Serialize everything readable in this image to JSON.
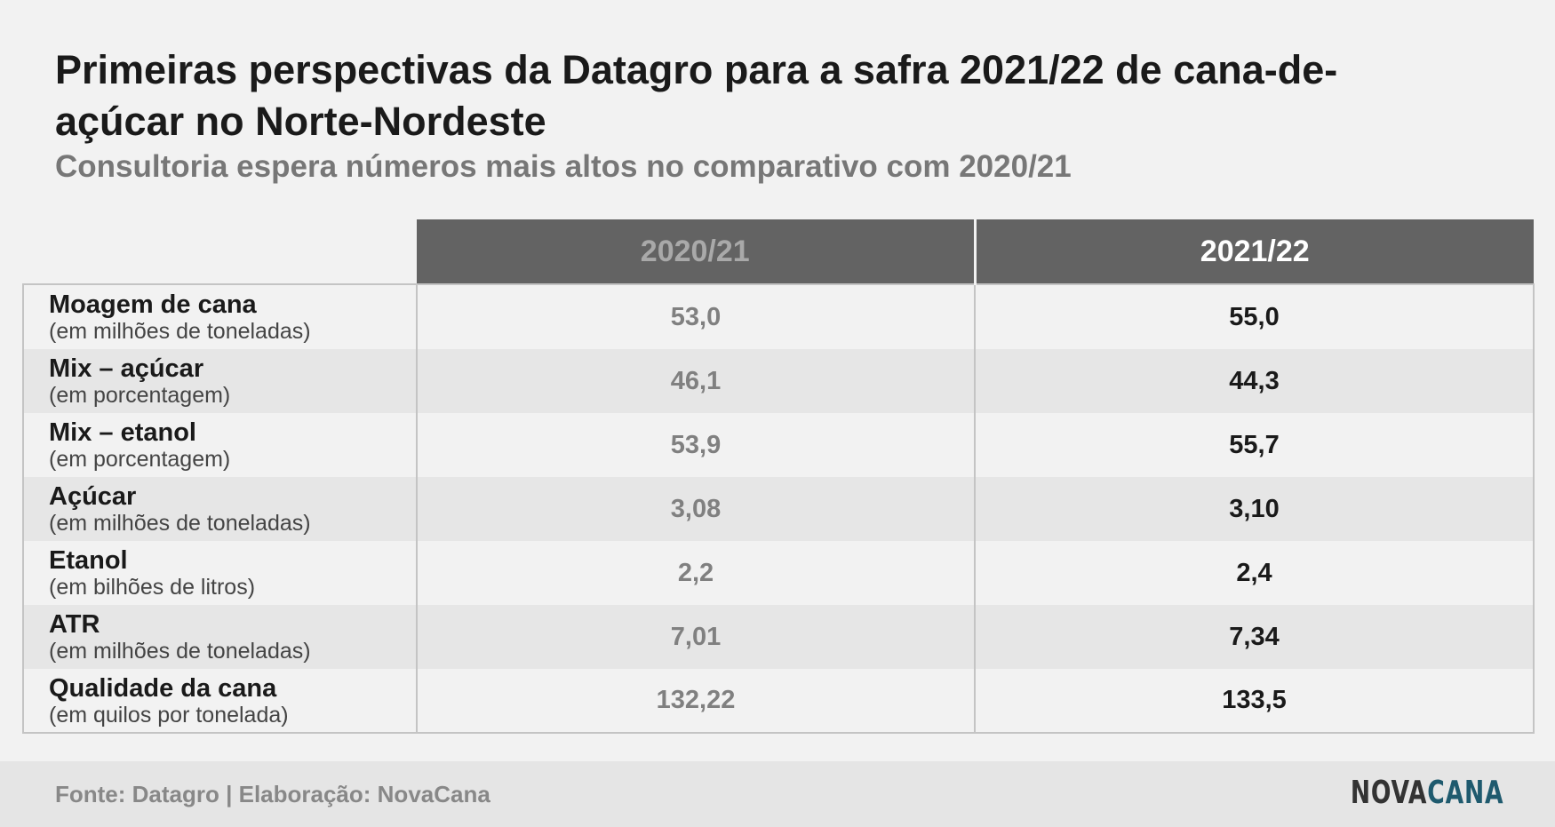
{
  "header": {
    "title": "Primeiras perspectivas da Datagro para a safra 2021/22 de cana-de-açúcar no Norte-Nordeste",
    "subtitle": "Consultoria espera números mais altos no comparativo com 2020/21"
  },
  "chart_data": {
    "type": "table",
    "columns": [
      "2020/21",
      "2021/22"
    ],
    "rows": [
      {
        "label": "Moagem de cana",
        "unit": "(em milhões de toneladas)",
        "values": [
          "53,0",
          "55,0"
        ]
      },
      {
        "label": "Mix – açúcar",
        "unit": "(em porcentagem)",
        "values": [
          "46,1",
          "44,3"
        ]
      },
      {
        "label": "Mix – etanol",
        "unit": "(em porcentagem)",
        "values": [
          "53,9",
          "55,7"
        ]
      },
      {
        "label": "Açúcar",
        "unit": "(em milhões de toneladas)",
        "values": [
          "3,08",
          "3,10"
        ]
      },
      {
        "label": "Etanol",
        "unit": "(em bilhões de litros)",
        "values": [
          "2,2",
          "2,4"
        ]
      },
      {
        "label": "ATR",
        "unit": "(em milhões de toneladas)",
        "values": [
          "7,01",
          "7,34"
        ]
      },
      {
        "label": "Qualidade da cana",
        "unit": "(em quilos por tonelada)",
        "values": [
          "132,22",
          "133,5"
        ]
      }
    ]
  },
  "footer": {
    "source": "Fonte: Datagro | Elaboração: NovaCana",
    "logo_part1": "NOVA",
    "logo_part2": "CANA"
  },
  "colors": {
    "header_bg": "#636363",
    "previous_value": "#808080",
    "current_value": "#1a1a1a",
    "logo_accent": "#1f5a6e"
  }
}
